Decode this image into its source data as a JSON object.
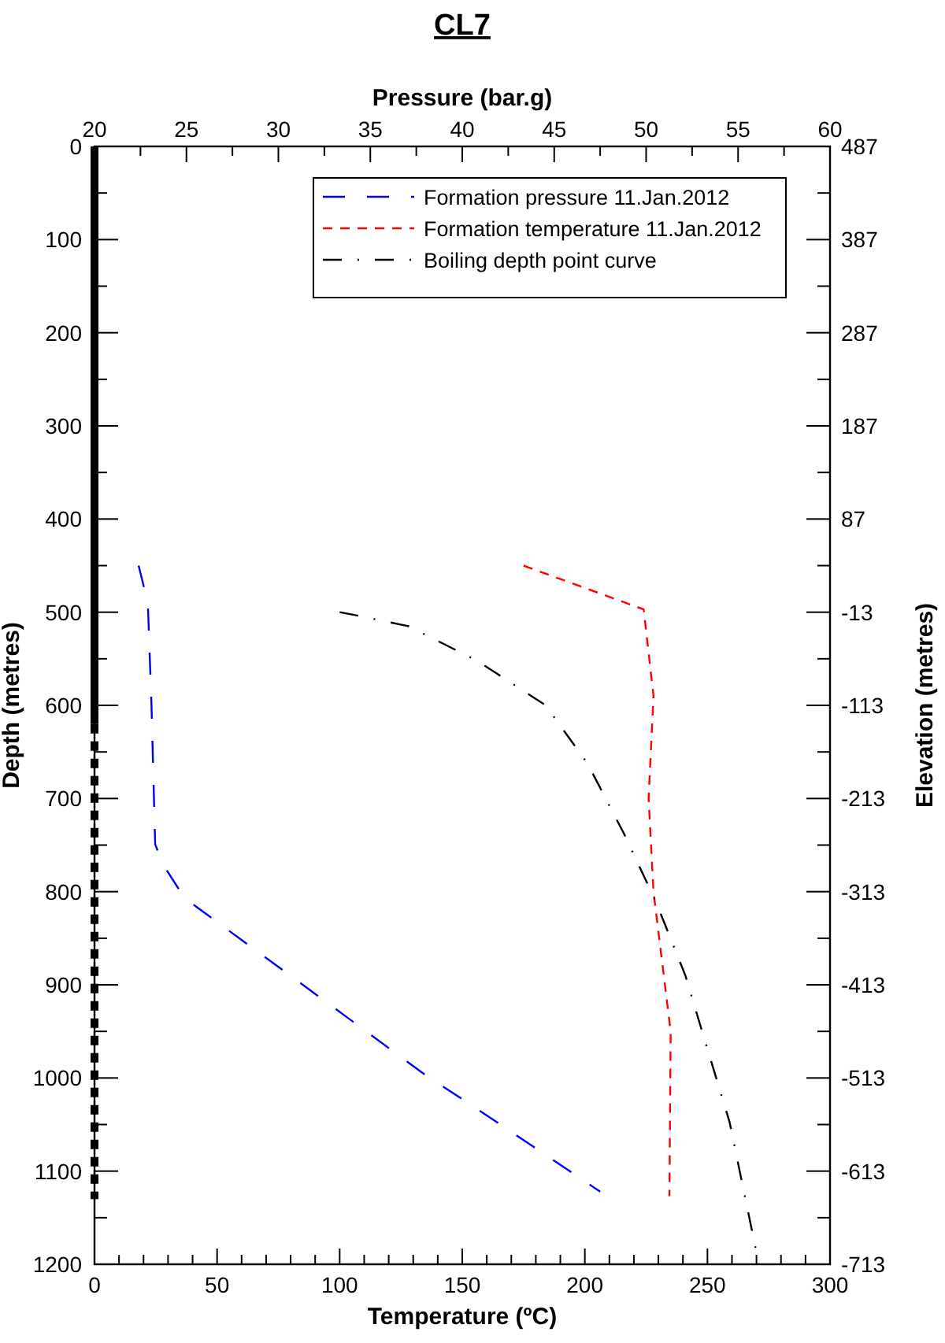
{
  "chart_data": {
    "type": "line",
    "orientation": "horizontal",
    "title": "CL7",
    "xlabel": "Temperature (ºC)",
    "x2label": "Pressure (bar.g)",
    "ylabel": "Depth (metres)",
    "y2label": "Elevation (metres)",
    "xlim": [
      0,
      300
    ],
    "xticks": [
      0,
      {
        "value": 10,
        "label": null
      },
      {
        "value": 20,
        "label": null
      },
      {
        "value": 30,
        "label": null
      },
      {
        "value": 40,
        "label": null
      },
      50,
      {
        "value": 60,
        "label": null
      },
      {
        "value": 70,
        "label": null
      },
      {
        "value": 80,
        "label": null
      },
      {
        "value": 90,
        "label": null
      },
      100,
      {
        "value": 110,
        "label": null
      },
      {
        "value": 120,
        "label": null
      },
      {
        "value": 130,
        "label": null
      },
      {
        "value": 140,
        "label": null
      },
      150,
      {
        "value": 160,
        "label": null
      },
      {
        "value": 170,
        "label": null
      },
      {
        "value": 180,
        "label": null
      },
      {
        "value": 190,
        "label": null
      },
      200,
      {
        "value": 210,
        "label": null
      },
      {
        "value": 220,
        "label": null
      },
      {
        "value": 230,
        "label": null
      },
      {
        "value": 240,
        "label": null
      },
      250,
      {
        "value": 260,
        "label": null
      },
      {
        "value": 270,
        "label": null
      },
      {
        "value": 280,
        "label": null
      },
      {
        "value": 290,
        "label": null
      },
      300
    ],
    "x2lim": [
      20,
      60
    ],
    "x2ticks": [
      20,
      {
        "value": 22.5,
        "label": null
      },
      25,
      {
        "value": 27.5,
        "label": null
      },
      30,
      {
        "value": 32.5,
        "label": null
      },
      35,
      {
        "value": 37.5,
        "label": null
      },
      40,
      {
        "value": 42.5,
        "label": null
      },
      45,
      {
        "value": 47.5,
        "label": null
      },
      50,
      {
        "value": 52.5,
        "label": null
      },
      55,
      {
        "value": 57.5,
        "label": null
      },
      60
    ],
    "ylim": [
      1200,
      0
    ],
    "yticks": [
      0,
      {
        "value": 50,
        "label": null
      },
      100,
      {
        "value": 150,
        "label": null
      },
      200,
      {
        "value": 250,
        "label": null
      },
      300,
      {
        "value": 350,
        "label": null
      },
      400,
      {
        "value": 450,
        "label": null
      },
      500,
      {
        "value": 550,
        "label": null
      },
      600,
      {
        "value": 650,
        "label": null
      },
      700,
      {
        "value": 750,
        "label": null
      },
      800,
      {
        "value": 850,
        "label": null
      },
      900,
      {
        "value": 950,
        "label": null
      },
      1000,
      {
        "value": 1050,
        "label": null
      },
      1100,
      {
        "value": 1150,
        "label": null
      },
      1200
    ],
    "y2lim": [
      -713,
      487
    ],
    "y2ticks": [
      487,
      {
        "value": 437,
        "label": null
      },
      387,
      {
        "value": 337,
        "label": null
      },
      287,
      {
        "value": 237,
        "label": null
      },
      187,
      {
        "value": 137,
        "label": null
      },
      87,
      {
        "value": 37,
        "label": null
      },
      -13,
      {
        "value": -63,
        "label": null
      },
      -113,
      {
        "value": -163,
        "label": null
      },
      -213,
      {
        "value": -263,
        "label": null
      },
      -313,
      {
        "value": -363,
        "label": null
      },
      -413,
      {
        "value": -463,
        "label": null
      },
      -513,
      {
        "value": -563,
        "label": null
      },
      -613,
      {
        "value": -663,
        "label": null
      },
      -713
    ],
    "grid": false,
    "legend": "top right",
    "marker": "none",
    "series": [
      {
        "name": "Formation pressure 11.Jan.2012",
        "color": "#0000ff",
        "axis": "x2",
        "line_style": "longdash",
        "x": [
          450,
          490,
          600,
          749,
          770,
          807,
          901,
          994,
          1053,
          1122
        ],
        "values": [
          22.4,
          22.9,
          23.1,
          23.3,
          23.7,
          24.9,
          31.4,
          37.8,
          42.3,
          47.5
        ]
      },
      {
        "name": "Formation temperature 11.Jan.2012",
        "color": "#ff0000",
        "line_style": "dashed",
        "x": [
          450,
          497,
          590,
          700,
          800,
          950,
          1127
        ],
        "values": [
          175,
          224,
          228,
          226,
          228,
          235,
          234.5
        ]
      },
      {
        "name": "Boiling depth point curve",
        "color": "#000000",
        "line_style": "dashdot",
        "x": [
          500,
          504,
          515,
          552,
          600,
          662,
          738,
          811,
          890,
          969,
          1047,
          1200
        ],
        "values": [
          100,
          108,
          128,
          156,
          184,
          201,
          216,
          229,
          241,
          250,
          259,
          271
        ]
      },
      {
        "color": "#000000",
        "line_style": "solid",
        "x": [
          0,
          620
        ],
        "values": [
          0,
          0
        ]
      },
      {
        "color": "#000000",
        "line_style": "dashed",
        "x": [
          620,
          1130
        ],
        "values": [
          0,
          0
        ]
      }
    ]
  }
}
